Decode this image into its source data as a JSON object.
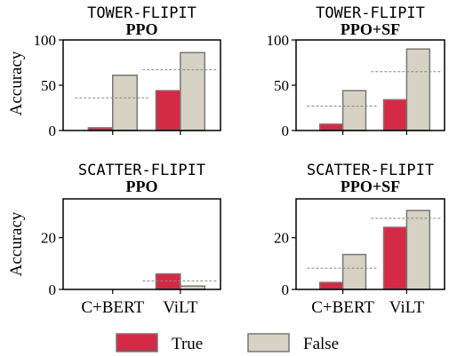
{
  "style": {
    "true_color": "#d42a45",
    "false_color": "#d6d3c4",
    "bar_edge": "#777777",
    "ref_line_color": "#888888"
  },
  "legend": {
    "placement": "bottom-center",
    "entries": [
      "True",
      "False"
    ]
  },
  "chart_data": [
    {
      "type": "bar",
      "title": "TOWER-FLIPIT",
      "subtitle": "PPO",
      "ylabel": "Accuracy",
      "ylim": [
        0,
        100
      ],
      "yticks": [
        "0",
        "50",
        "100"
      ],
      "categories": [
        "C+BERT",
        "ViLT"
      ],
      "show_xtick_labels": false,
      "series": [
        {
          "name": "True",
          "values": [
            3,
            44
          ]
        },
        {
          "name": "False",
          "values": [
            61,
            86
          ]
        }
      ],
      "reference_lines": [
        36,
        67
      ]
    },
    {
      "type": "bar",
      "title": "TOWER-FLIPIT",
      "subtitle": "PPO+SF",
      "ylabel": "",
      "ylim": [
        0,
        100
      ],
      "yticks": [
        "0",
        "50",
        "100"
      ],
      "categories": [
        "C+BERT",
        "ViLT"
      ],
      "show_xtick_labels": false,
      "series": [
        {
          "name": "True",
          "values": [
            7,
            34
          ]
        },
        {
          "name": "False",
          "values": [
            44,
            90
          ]
        }
      ],
      "reference_lines": [
        27,
        65
      ]
    },
    {
      "type": "bar",
      "title": "SCATTER-FLIPIT",
      "subtitle": "PPO",
      "ylabel": "Accuracy",
      "ylim": [
        0,
        35
      ],
      "yticks": [
        "0",
        "20"
      ],
      "categories": [
        "C+BERT",
        "ViLT"
      ],
      "show_xtick_labels": true,
      "series": [
        {
          "name": "True",
          "values": [
            0,
            6
          ]
        },
        {
          "name": "False",
          "values": [
            0,
            1.3
          ]
        }
      ],
      "reference_lines": [
        null,
        3.3
      ]
    },
    {
      "type": "bar",
      "title": "SCATTER-FLIPIT",
      "subtitle": "PPO+SF",
      "ylabel": "",
      "ylim": [
        0,
        35
      ],
      "yticks": [
        "0",
        "20"
      ],
      "categories": [
        "C+BERT",
        "ViLT"
      ],
      "show_xtick_labels": true,
      "series": [
        {
          "name": "True",
          "values": [
            2.7,
            24
          ]
        },
        {
          "name": "False",
          "values": [
            13.5,
            30.5
          ]
        }
      ],
      "reference_lines": [
        8.2,
        27.5
      ]
    }
  ]
}
